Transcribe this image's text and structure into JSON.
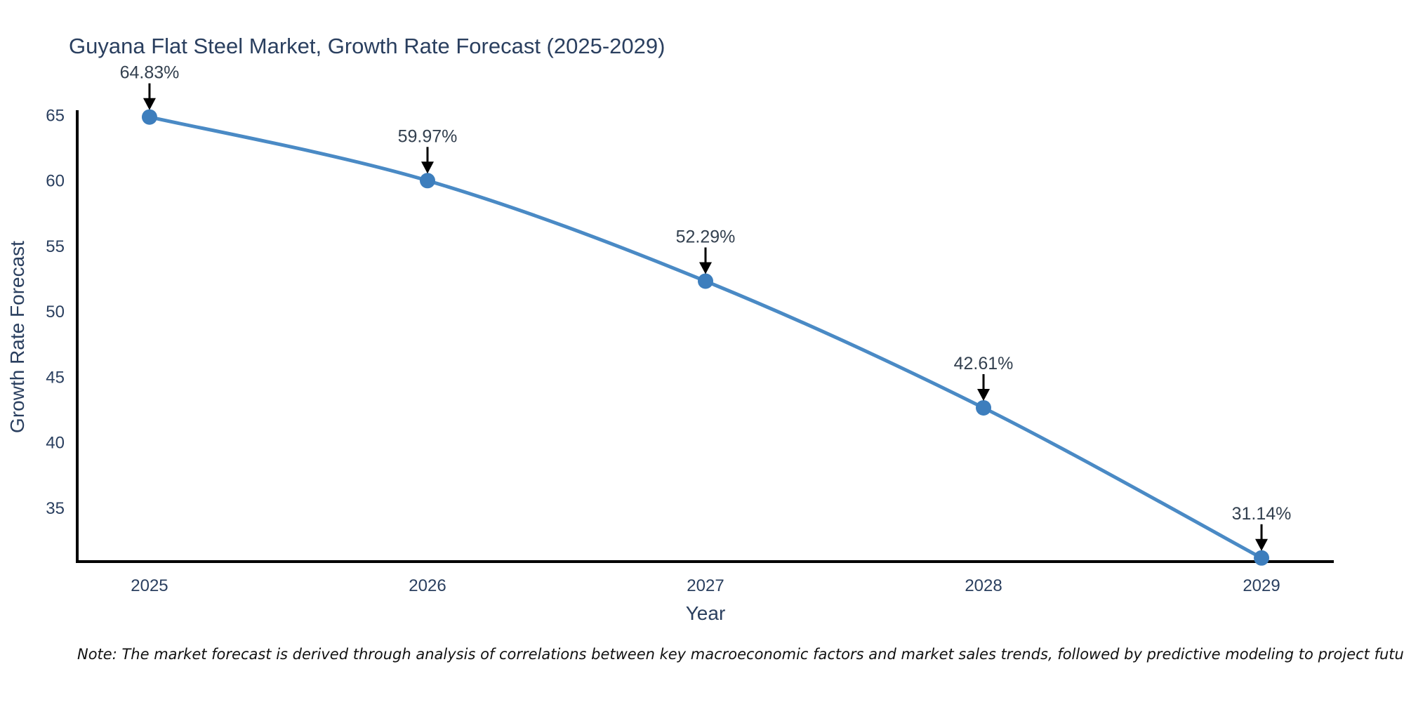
{
  "chart": {
    "title": "Guyana Flat Steel Market, Growth Rate Forecast (2025-2029)",
    "xlabel": "Year",
    "ylabel": "Growth Rate Forecast",
    "note": "Note: The market forecast is derived through analysis of correlations between key macroeconomic factors and market sales trends, followed by predictive modeling to project future sales"
  },
  "chart_data": {
    "type": "line",
    "title": "Guyana Flat Steel Market, Growth Rate Forecast (2025-2029)",
    "xlabel": "Year",
    "ylabel": "Growth Rate Forecast",
    "x": [
      2025,
      2026,
      2027,
      2028,
      2029
    ],
    "series": [
      {
        "name": "Growth Rate Forecast",
        "values": [
          64.83,
          59.97,
          52.29,
          42.61,
          31.14
        ],
        "point_labels": [
          "64.83%",
          "59.97%",
          "52.29%",
          "42.61%",
          "31.14%"
        ]
      }
    ],
    "xticks": [
      "2025",
      "2026",
      "2027",
      "2028",
      "2029"
    ],
    "yticks": [
      35,
      40,
      45,
      50,
      55,
      60,
      65
    ],
    "xlim": [
      2024.74,
      2029.26
    ],
    "ylim": [
      30.86,
      65.35
    ],
    "grid": false,
    "legend_position": "none",
    "line_shape": "spline",
    "annotations_have_arrows": true,
    "colors": {
      "line": "#4a8ac5",
      "marker": "#3d7ebd",
      "axis": "#000000",
      "text": "#2a3f5f",
      "annotation_text": "#33404f",
      "arrow": "#000000"
    }
  }
}
